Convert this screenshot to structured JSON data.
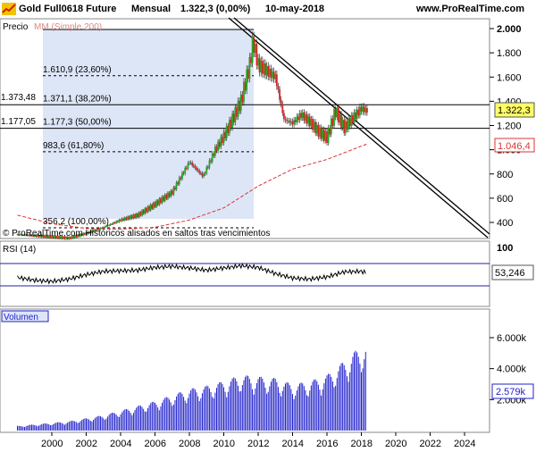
{
  "header": {
    "instrument": "Gold Full0618 Future",
    "period": "Mensual",
    "last": "1.322,3 (0,00%)",
    "date": "10-may-2018",
    "site": "www.ProRealTime.com"
  },
  "price_panel": {
    "label": "Precio",
    "ma_label": "MM (Simple 200)",
    "watermark": "© ProRealTime.com  Históricos alisados en saltos tras vencimientos",
    "last_badge": "1.322,3",
    "ma_badge": "1.046,4",
    "left_marks": [
      "1.373,48",
      "1.177,05"
    ],
    "fib_levels": [
      {
        "value": 1610.9,
        "label": "1.610,9 (23,60%)"
      },
      {
        "value": 1371.1,
        "label": "1.371,1 (38,20%)"
      },
      {
        "value": 1177.3,
        "label": "1.177,3 (50,00%)"
      },
      {
        "value": 983.6,
        "label": "983,6 (61,80%)"
      },
      {
        "value": 356.2,
        "label": "356,2 (100,00%)"
      }
    ]
  },
  "rsi_panel": {
    "label": "RSI (14)",
    "value_badge": "53,246",
    "top_tick": "100"
  },
  "volume_panel": {
    "label": "Volumen",
    "value_badge": "2.579k"
  },
  "colors": {
    "up": "#22aa22",
    "down": "#dd2222",
    "ma": "#dd3333",
    "rsi": "#000000",
    "volume": "#2222cc",
    "shade": "#dde6f7"
  },
  "chart_data": [
    {
      "type": "line",
      "title": "Gold Full0618 Future - Mensual",
      "x_ticks": [
        "2000",
        "2002",
        "2004",
        "2006",
        "2008",
        "2010",
        "2012",
        "2014",
        "2016",
        "2018",
        "2020",
        "2022",
        "2024"
      ],
      "y_ticks": [
        "2.000",
        "1.800",
        "1.600",
        "1.400",
        "1.200",
        "1.000",
        "800",
        "600",
        "400"
      ],
      "ylim": [
        290,
        2020
      ],
      "series": [
        {
          "name": "Precio",
          "x": [
            1998.0,
            1999.0,
            2000.0,
            2001.0,
            2002.0,
            2003.0,
            2004.0,
            2005.0,
            2006.0,
            2007.0,
            2008.0,
            2008.8,
            2009.5,
            2010.0,
            2010.5,
            2011.0,
            2011.5,
            2011.7,
            2012.0,
            2012.5,
            2013.0,
            2013.5,
            2014.0,
            2014.5,
            2015.0,
            2015.5,
            2016.0,
            2016.5,
            2017.0,
            2017.5,
            2018.0,
            2018.3
          ],
          "values": [
            300,
            290,
            280,
            270,
            310,
            360,
            420,
            460,
            550,
            650,
            900,
            780,
            1000,
            1110,
            1250,
            1400,
            1700,
            1900,
            1700,
            1650,
            1600,
            1250,
            1220,
            1290,
            1230,
            1150,
            1100,
            1320,
            1180,
            1260,
            1340,
            1322
          ]
        },
        {
          "name": "MM (Simple 200)",
          "x": [
            1998.0,
            2000.0,
            2002.0,
            2004.0,
            2006.0,
            2008.0,
            2010.0,
            2012.0,
            2014.0,
            2016.0,
            2018.3
          ],
          "values": [
            460,
            390,
            350,
            345,
            360,
            420,
            520,
            700,
            840,
            920,
            1046
          ]
        }
      ]
    },
    {
      "type": "line",
      "title": "RSI (14)",
      "ylim": [
        0,
        100
      ],
      "series": [
        {
          "name": "RSI (14)",
          "x": [
            1998,
            1999,
            2000,
            2001,
            2002,
            2003,
            2004,
            2005,
            2006,
            2007,
            2008,
            2009,
            2010,
            2011,
            2012,
            2013,
            2014,
            2015,
            2016,
            2017,
            2018,
            2018.3
          ],
          "values": [
            45,
            40,
            38,
            42,
            50,
            56,
            57,
            58,
            63,
            65,
            62,
            58,
            62,
            66,
            63,
            52,
            44,
            42,
            46,
            55,
            56,
            53.246
          ]
        }
      ]
    },
    {
      "type": "bar",
      "title": "Volumen",
      "x": [
        1998,
        1999,
        2000,
        2001,
        2002,
        2003,
        2004,
        2005,
        2006,
        2007,
        2008,
        2009,
        2010,
        2011,
        2012,
        2013,
        2014,
        2015,
        2016,
        2017,
        2018
      ],
      "y_ticks": [
        "6.000k",
        "4.000k",
        "2.000k"
      ],
      "values": [
        300,
        400,
        500,
        600,
        800,
        1000,
        1300,
        1600,
        1900,
        2300,
        2700,
        2900,
        3200,
        3600,
        3500,
        3400,
        3000,
        3200,
        3600,
        4500,
        5500
      ]
    }
  ]
}
